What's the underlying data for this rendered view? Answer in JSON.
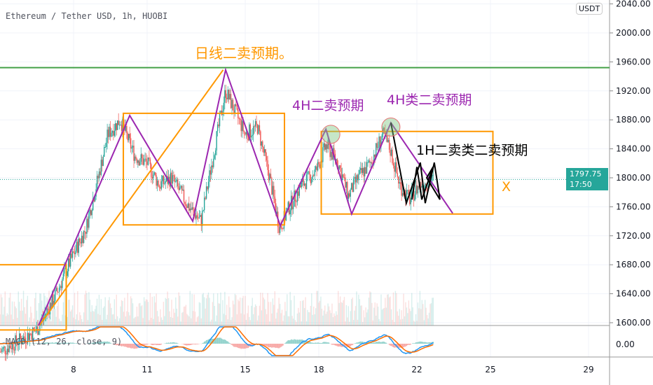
{
  "header": {
    "title": "Ethereum / Tether USD, 1h, HUOBI",
    "currency_badge": "USDT"
  },
  "price_label": {
    "price": "1797.75",
    "countdown": "17:50",
    "color": "#26a69a"
  },
  "macd": {
    "label": "MACD (12, 26, close, 9)",
    "axis_label": "0.00",
    "macd_color": "#2196f3",
    "signal_color": "#ff6d00"
  },
  "chart_data": {
    "type": "candlestick",
    "y_ticks": [
      2040,
      2000,
      1960,
      1920,
      1880,
      1840,
      1800,
      1760,
      1720,
      1680,
      1640,
      1600
    ],
    "y_tick_labels": [
      "2040.00",
      "2000.00",
      "1960.00",
      "1920.00",
      "1880.00",
      "1840.00",
      "1800.00",
      "1760.00",
      "1720.00",
      "1680.00",
      "1640.00",
      "1600.00"
    ],
    "x_ticks": [
      8,
      11,
      15,
      18,
      22,
      25,
      29
    ],
    "x_tick_labels": [
      "8",
      "11",
      "15",
      "18",
      "22",
      "25",
      "29"
    ],
    "up_color": "#26a69a",
    "down_color": "#ef5350",
    "price_path": [
      [
        5.0,
        1560
      ],
      [
        6.5,
        1590
      ],
      [
        7.3,
        1640
      ],
      [
        7.8,
        1680
      ],
      [
        8.5,
        1730
      ],
      [
        9.0,
        1800
      ],
      [
        9.4,
        1860
      ],
      [
        9.9,
        1880
      ],
      [
        10.5,
        1830
      ],
      [
        11.0,
        1820
      ],
      [
        11.5,
        1790
      ],
      [
        12.0,
        1800
      ],
      [
        12.7,
        1760
      ],
      [
        13.2,
        1740
      ],
      [
        13.8,
        1850
      ],
      [
        14.2,
        1920
      ],
      [
        14.6,
        1890
      ],
      [
        15.0,
        1860
      ],
      [
        15.5,
        1870
      ],
      [
        16.0,
        1800
      ],
      [
        16.4,
        1730
      ],
      [
        16.8,
        1760
      ],
      [
        17.3,
        1790
      ],
      [
        17.9,
        1810
      ],
      [
        18.3,
        1845
      ],
      [
        18.8,
        1820
      ],
      [
        19.2,
        1775
      ],
      [
        19.6,
        1800
      ],
      [
        20.1,
        1820
      ],
      [
        20.6,
        1860
      ],
      [
        20.9,
        1840
      ],
      [
        21.3,
        1790
      ],
      [
        21.7,
        1770
      ],
      [
        22.1,
        1790
      ],
      [
        22.7,
        1797.75
      ]
    ],
    "annotations": {
      "resistance_line": {
        "price": 1952,
        "color": "#43a047"
      },
      "boxes": [
        {
          "d1": 10.03,
          "d2": 16.6,
          "p1": 1889,
          "p2": 1735
        },
        {
          "d1": 18.1,
          "d2": 25.1,
          "p1": 1864,
          "p2": 1750
        },
        {
          "d1": 4.9,
          "d2": 7.7,
          "p1": 1680,
          "p2": 1590
        }
      ],
      "orange_trend": [
        [
          6.6,
          1596
        ],
        [
          14.1,
          1949
        ]
      ],
      "purple_zigzag": [
        [
          6.57,
          1596
        ],
        [
          10.29,
          1886
        ],
        [
          12.86,
          1740
        ],
        [
          14.2,
          1949
        ],
        [
          16.43,
          1734
        ],
        [
          18.29,
          1867
        ],
        [
          19.34,
          1750
        ],
        [
          20.94,
          1876
        ],
        [
          23.46,
          1751
        ]
      ],
      "black_zigzag": [
        [
          20.94,
          1876
        ],
        [
          21.57,
          1765
        ],
        [
          22.14,
          1821
        ],
        [
          22.34,
          1765
        ],
        [
          22.71,
          1821
        ],
        [
          22.94,
          1770
        ],
        [
          22.4,
          1800
        ],
        [
          22.66,
          1815
        ],
        [
          22.2,
          1770
        ],
        [
          22.0,
          1815
        ],
        [
          21.8,
          1770
        ]
      ],
      "circles": [
        [
          18.49,
          1860
        ],
        [
          20.94,
          1870
        ]
      ],
      "accent_orange": "#ff9800",
      "accent_purple": "#9c27b0"
    },
    "texts": [
      {
        "text": "日线二卖预期。",
        "color": "#ff9800"
      },
      {
        "text": "4H二卖预期",
        "color": "#9c27b0"
      },
      {
        "text": "4H类二卖预期",
        "color": "#9c27b0"
      },
      {
        "text": "1H二卖类二卖预期",
        "color": "#000000"
      },
      {
        "text": "X",
        "color": "#ff9800"
      }
    ]
  }
}
